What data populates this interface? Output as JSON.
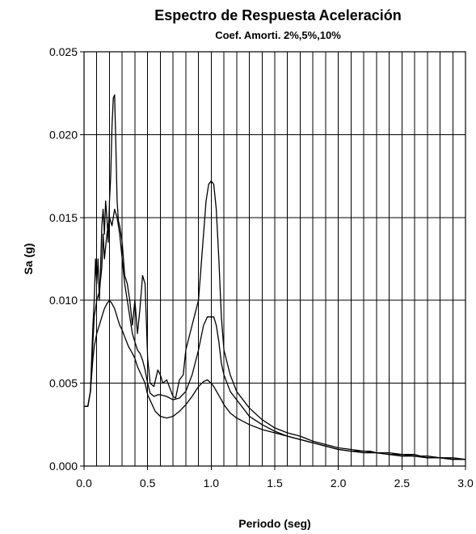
{
  "chart_data": {
    "type": "line",
    "title": "Espectro de Respuesta Aceleración",
    "subtitle": "Coef. Amorti. 2%,5%,10%",
    "xlabel": "Periodo (seg)",
    "ylabel": "Sa (g)",
    "xlim": [
      0.0,
      3.0
    ],
    "ylim": [
      0.0,
      0.025
    ],
    "x_ticks": [
      "0.0",
      "0.5",
      "1.0",
      "1.5",
      "2.0",
      "2.5",
      "3.0"
    ],
    "y_ticks": [
      "0.000",
      "0.005",
      "0.010",
      "0.015",
      "0.020",
      "0.025"
    ],
    "grid": {
      "x_step": 0.1,
      "y_step": 0.005
    },
    "line_color": "#000000",
    "series": [
      {
        "x": [
          0.0,
          0.03,
          0.05,
          0.07,
          0.08,
          0.09,
          0.1,
          0.11,
          0.12,
          0.13,
          0.14,
          0.15,
          0.16,
          0.17,
          0.18,
          0.19,
          0.2,
          0.21,
          0.22,
          0.23,
          0.24,
          0.25,
          0.26,
          0.27,
          0.28,
          0.3,
          0.32,
          0.34,
          0.36,
          0.38,
          0.4,
          0.42,
          0.44,
          0.46,
          0.48,
          0.5,
          0.52,
          0.55,
          0.58,
          0.6,
          0.62,
          0.65,
          0.68,
          0.7,
          0.72,
          0.75,
          0.78,
          0.8,
          0.85,
          0.9,
          0.93,
          0.96,
          0.98,
          1.0,
          1.02,
          1.04,
          1.06,
          1.08,
          1.1,
          1.15,
          1.2,
          1.3,
          1.4,
          1.5,
          1.6,
          1.7,
          1.8,
          1.9,
          2.0,
          2.1,
          2.2,
          2.25,
          2.3,
          2.4,
          2.5,
          2.6,
          2.65,
          2.7,
          2.8,
          2.9,
          3.0
        ],
        "y": [
          0.0036,
          0.0036,
          0.0045,
          0.0085,
          0.01,
          0.0125,
          0.011,
          0.0125,
          0.01,
          0.012,
          0.0145,
          0.0155,
          0.014,
          0.016,
          0.015,
          0.0135,
          0.016,
          0.0175,
          0.0205,
          0.0222,
          0.0224,
          0.0195,
          0.016,
          0.0148,
          0.0145,
          0.0135,
          0.0115,
          0.011,
          0.01,
          0.0085,
          0.01,
          0.008,
          0.0095,
          0.0115,
          0.011,
          0.0065,
          0.005,
          0.0048,
          0.0058,
          0.0055,
          0.005,
          0.0052,
          0.0046,
          0.0042,
          0.0041,
          0.0052,
          0.0055,
          0.007,
          0.0085,
          0.01,
          0.013,
          0.016,
          0.017,
          0.0172,
          0.017,
          0.0155,
          0.0125,
          0.009,
          0.007,
          0.0055,
          0.0045,
          0.0035,
          0.0028,
          0.0023,
          0.002,
          0.0018,
          0.0015,
          0.0013,
          0.0011,
          0.001,
          0.0009,
          0.0009,
          0.0008,
          0.0008,
          0.0007,
          0.0007,
          0.0006,
          0.0006,
          0.0005,
          0.0005,
          0.0004
        ]
      },
      {
        "x": [
          0.0,
          0.03,
          0.05,
          0.07,
          0.08,
          0.1,
          0.12,
          0.14,
          0.15,
          0.16,
          0.18,
          0.2,
          0.22,
          0.24,
          0.26,
          0.28,
          0.3,
          0.32,
          0.34,
          0.36,
          0.38,
          0.4,
          0.42,
          0.44,
          0.46,
          0.48,
          0.5,
          0.52,
          0.55,
          0.58,
          0.6,
          0.65,
          0.7,
          0.75,
          0.8,
          0.85,
          0.9,
          0.94,
          0.97,
          1.0,
          1.02,
          1.04,
          1.06,
          1.08,
          1.1,
          1.15,
          1.2,
          1.25,
          1.3,
          1.4,
          1.5,
          1.6,
          1.7,
          1.8,
          1.9,
          2.0,
          2.1,
          2.2,
          2.3,
          2.4,
          2.5,
          2.6,
          2.7,
          2.8,
          2.9,
          3.0
        ],
        "y": [
          0.0036,
          0.0036,
          0.0045,
          0.0075,
          0.009,
          0.01,
          0.0105,
          0.012,
          0.014,
          0.0125,
          0.014,
          0.015,
          0.0145,
          0.0155,
          0.015,
          0.014,
          0.0125,
          0.011,
          0.01,
          0.009,
          0.008,
          0.0075,
          0.007,
          0.0068,
          0.0064,
          0.0058,
          0.005,
          0.0044,
          0.0042,
          0.0043,
          0.0043,
          0.0042,
          0.004,
          0.0041,
          0.0045,
          0.0055,
          0.007,
          0.0085,
          0.009,
          0.009,
          0.009,
          0.0085,
          0.0075,
          0.0062,
          0.0055,
          0.0045,
          0.004,
          0.0035,
          0.003,
          0.0025,
          0.0021,
          0.0018,
          0.0016,
          0.0014,
          0.0012,
          0.001,
          0.0009,
          0.0009,
          0.0008,
          0.0007,
          0.0007,
          0.0006,
          0.0005,
          0.0005,
          0.0004,
          0.0004
        ]
      },
      {
        "x": [
          0.0,
          0.03,
          0.05,
          0.07,
          0.08,
          0.1,
          0.12,
          0.14,
          0.16,
          0.18,
          0.2,
          0.22,
          0.24,
          0.26,
          0.28,
          0.3,
          0.32,
          0.35,
          0.38,
          0.4,
          0.42,
          0.45,
          0.48,
          0.5,
          0.53,
          0.56,
          0.6,
          0.65,
          0.7,
          0.75,
          0.8,
          0.85,
          0.9,
          0.94,
          0.97,
          1.0,
          1.02,
          1.05,
          1.08,
          1.1,
          1.15,
          1.2,
          1.3,
          1.4,
          1.5,
          1.6,
          1.7,
          1.8,
          1.9,
          2.0,
          2.1,
          2.2,
          2.3,
          2.4,
          2.5,
          2.6,
          2.7,
          2.8,
          2.9,
          3.0
        ],
        "y": [
          0.0036,
          0.0036,
          0.0045,
          0.0065,
          0.0072,
          0.008,
          0.0085,
          0.009,
          0.0095,
          0.0098,
          0.01,
          0.0098,
          0.0095,
          0.009,
          0.0085,
          0.0082,
          0.0078,
          0.0072,
          0.0068,
          0.0065,
          0.006,
          0.0055,
          0.005,
          0.0043,
          0.0038,
          0.0033,
          0.003,
          0.0029,
          0.003,
          0.0033,
          0.0037,
          0.0042,
          0.0048,
          0.0051,
          0.0052,
          0.005,
          0.0048,
          0.0044,
          0.004,
          0.0037,
          0.0032,
          0.0029,
          0.0025,
          0.0022,
          0.002,
          0.0018,
          0.0016,
          0.0014,
          0.0012,
          0.001,
          0.0009,
          0.0008,
          0.0008,
          0.0007,
          0.0006,
          0.0006,
          0.0005,
          0.0005,
          0.0004,
          0.0004
        ]
      }
    ]
  }
}
